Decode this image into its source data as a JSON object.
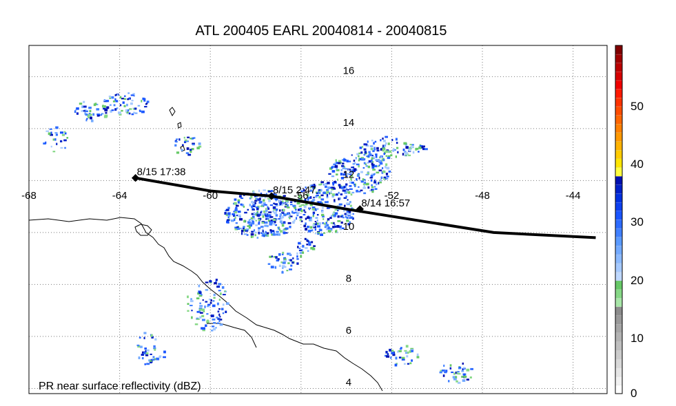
{
  "title": "ATL 200405 EARL 20040814 - 20040815",
  "map": {
    "lon_labels": [
      "-68",
      "-64",
      "-60",
      "-56",
      "-52",
      "-48",
      "-44"
    ],
    "lat_labels": [
      "4",
      "6",
      "8",
      "10",
      "12",
      "14",
      "16"
    ],
    "lon_range": [
      -68,
      -42.5
    ],
    "lat_range": [
      3.8,
      17.2
    ],
    "gridline_style": "dotted",
    "footer_label": "PR near surface reflectivity (dBZ)"
  },
  "track": {
    "points": [
      {
        "lon": -43.0,
        "lat": 9.8
      },
      {
        "lon": -47.5,
        "lat": 10.0
      },
      {
        "lon": -54.0,
        "lat": 10.9
      },
      {
        "lon": -57.3,
        "lat": 11.4
      },
      {
        "lon": -60.0,
        "lat": 11.6
      },
      {
        "lon": -63.3,
        "lat": 12.1
      }
    ],
    "overpasses": [
      {
        "label": "8/14 16:57",
        "lon": -53.4,
        "lat": 10.9
      },
      {
        "label": "8/15 2:47",
        "lon": -57.3,
        "lat": 11.4
      },
      {
        "label": "8/15 17:38",
        "lon": -63.3,
        "lat": 12.1
      }
    ]
  },
  "colorbar": {
    "labels": [
      "0",
      "10",
      "20",
      "30",
      "40",
      "50"
    ],
    "range": [
      0,
      60
    ],
    "colors": [
      "#ffffff",
      "#f2f2f2",
      "#e6e6e6",
      "#d9d9d9",
      "#cccccc",
      "#bfbfbf",
      "#b3b3b3",
      "#a6a6a6",
      "#999999",
      "#8c8c8c",
      "#a8e6a8",
      "#86d886",
      "#66c866",
      "#bfd9ff",
      "#a6caff",
      "#8cbaff",
      "#73aaff",
      "#5a9aff",
      "#4080ff",
      "#2d6bff",
      "#1a55ff",
      "#0d40f0",
      "#0030e0",
      "#0020c8",
      "#0010b0",
      "#ffff40",
      "#ffe600",
      "#ffcc00",
      "#ffb300",
      "#ff9900",
      "#ff8000",
      "#ff6600",
      "#ff4d00",
      "#ff3300",
      "#ff1a00",
      "#f00000",
      "#d60000",
      "#bb0000",
      "#a00000",
      "#800000"
    ]
  },
  "colors": {
    "track": "#000000",
    "coast": "#000000",
    "grid": "#777777"
  }
}
